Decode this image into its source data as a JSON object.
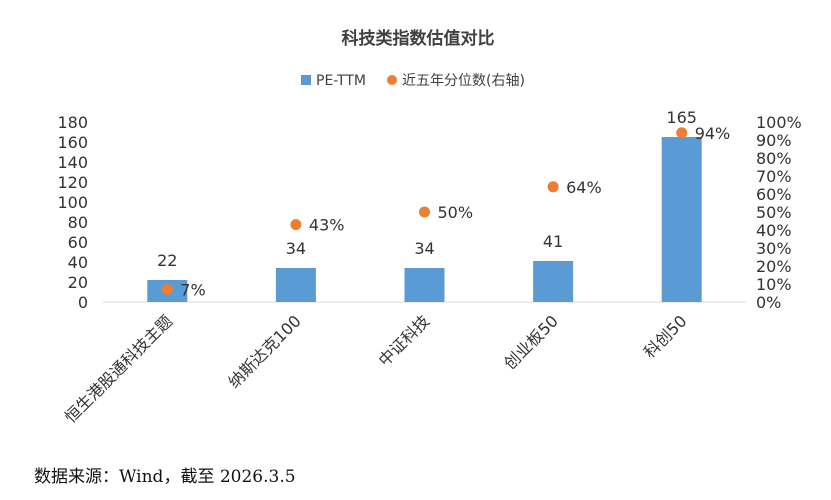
{
  "chart_data": {
    "type": "bar",
    "title": "科技类指数估值对比",
    "categories": [
      "恒生港股通科技主题",
      "纳斯达克100",
      "中证科技",
      "创业板50",
      "科创50"
    ],
    "series": [
      {
        "name": "PE-TTM",
        "type": "bar",
        "axis": "left",
        "color": "#5B9BD5",
        "values": [
          22,
          34,
          34,
          41,
          165
        ],
        "labels": [
          "22",
          "34",
          "34",
          "41",
          "165"
        ]
      },
      {
        "name": "近五年分位数(右轴)",
        "type": "scatter",
        "axis": "right",
        "color": "#ED7D31",
        "values": [
          7,
          43,
          50,
          64,
          94
        ],
        "labels": [
          "7%",
          "43%",
          "50%",
          "64%",
          "94%"
        ]
      }
    ],
    "y_left": {
      "ylim": [
        0,
        180
      ],
      "ticks": [
        "0",
        "20",
        "40",
        "60",
        "80",
        "100",
        "120",
        "140",
        "160",
        "180"
      ]
    },
    "y_right": {
      "ylim": [
        0,
        100
      ],
      "ticks": [
        "0%",
        "10%",
        "20%",
        "30%",
        "40%",
        "50%",
        "60%",
        "70%",
        "80%",
        "90%",
        "100%"
      ]
    },
    "legend_position": "top-center",
    "grid": false
  },
  "source_text": "数据来源：Wind，截至 2026.3.5"
}
